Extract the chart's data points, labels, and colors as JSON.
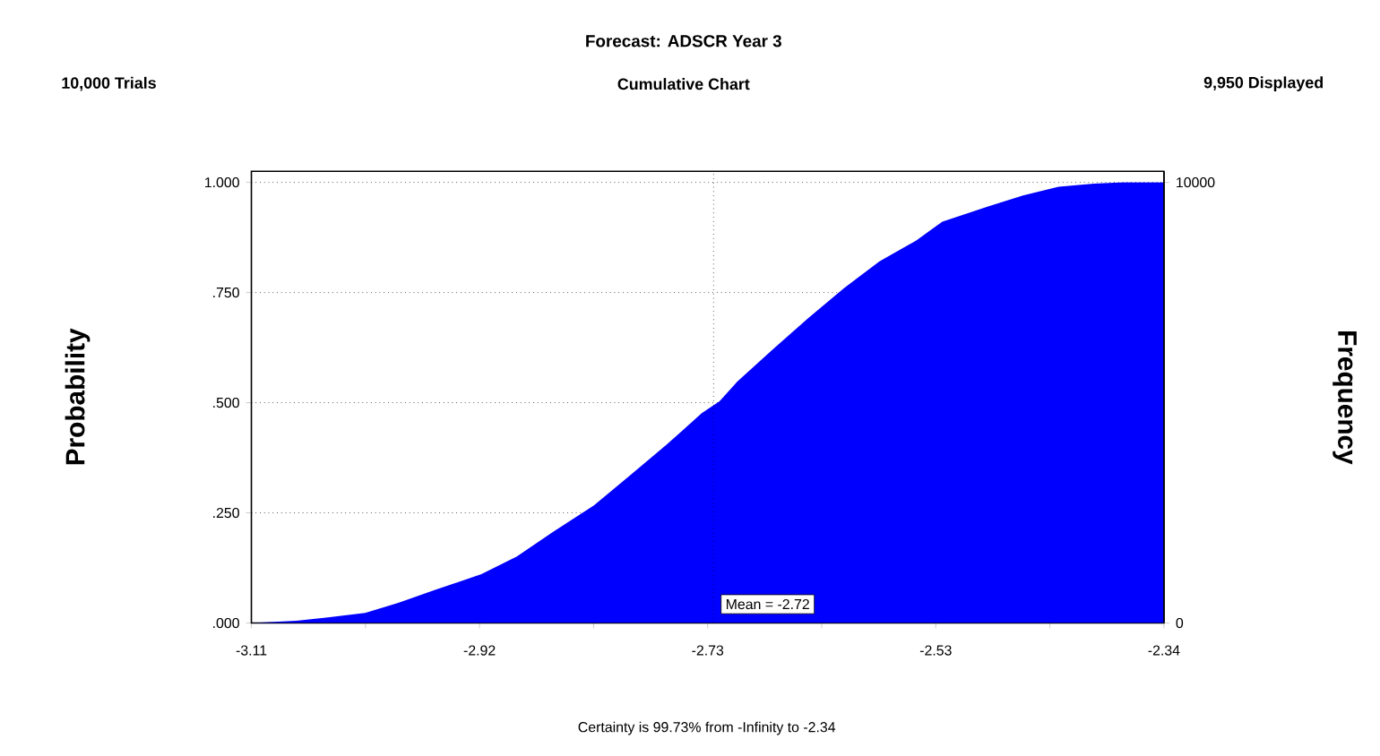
{
  "chart_data": {
    "type": "area",
    "title": "Forecast: ADSCR Year 3",
    "subtitle": "Cumulative Chart",
    "ylabel": "Probability",
    "y2label": "Frequency",
    "annotations": [
      "10,000 Trials",
      "9,950 Displayed",
      "Certainty is 99.73% from -Infinity to -2.34"
    ],
    "x": [
      -3.11,
      -3.072,
      -3.047,
      -3.014,
      -2.986,
      -2.956,
      -2.916,
      -2.886,
      -2.856,
      -2.821,
      -2.791,
      -2.76,
      -2.73,
      -2.715,
      -2.7,
      -2.67,
      -2.64,
      -2.61,
      -2.58,
      -2.549,
      -2.527,
      -2.489,
      -2.459,
      -2.429,
      -2.399,
      -2.374,
      -2.34
    ],
    "values": [
      0.0,
      0.005,
      0.012,
      0.023,
      0.046,
      0.074,
      0.111,
      0.151,
      0.206,
      0.267,
      0.334,
      0.404,
      0.476,
      0.503,
      0.548,
      0.621,
      0.692,
      0.76,
      0.821,
      0.868,
      0.911,
      0.945,
      0.97,
      0.99,
      0.997,
      1.0,
      1.0
    ],
    "color": "#0000ff",
    "xlim": [
      -3.11,
      -2.34
    ],
    "xticks": [
      {
        "value": -3.11,
        "label": "-3.11"
      },
      {
        "value": -3.01375,
        "label": null
      },
      {
        "value": -2.9175,
        "label": "-2.92"
      },
      {
        "value": -2.82125,
        "label": null
      },
      {
        "value": -2.725,
        "label": "-2.73"
      },
      {
        "value": -2.62875,
        "label": null
      },
      {
        "value": -2.5325,
        "label": "-2.53"
      },
      {
        "value": -2.43625,
        "label": null
      },
      {
        "value": -2.34,
        "label": "-2.34"
      }
    ],
    "ylim": [
      0,
      1.025
    ],
    "yticks": [
      {
        "value": 0,
        "label": ".000"
      },
      {
        "value": 0.25,
        "label": ".250"
      },
      {
        "value": 0.5,
        "label": ".500"
      },
      {
        "value": 0.75,
        "label": ".750"
      },
      {
        "value": 1,
        "label": "1.000"
      }
    ],
    "y2lim": [
      0,
      10250
    ],
    "y2ticks": [
      0,
      10000
    ],
    "grid": "y",
    "ref_lines": [
      {
        "axis": "x",
        "value": -2.72,
        "label": "Mean = -2.72",
        "line_style": "dotted"
      }
    ]
  }
}
